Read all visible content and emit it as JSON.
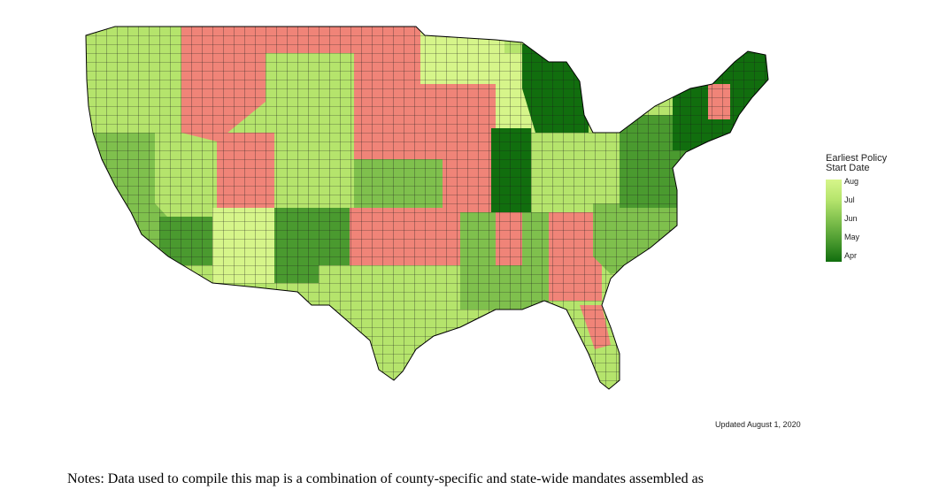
{
  "legend": {
    "title_line1": "Earliest Policy",
    "title_line2": "Start Date",
    "ticks": [
      "Aug",
      "Jul",
      "Jun",
      "May",
      "Apr"
    ],
    "colors": {
      "Aug": "#d6f58a",
      "Jul": "#b5e46c",
      "Jun": "#7fc04d",
      "May": "#4a9a2f",
      "Apr": "#116e0e",
      "none": "#f08478"
    }
  },
  "updated": "Updated August 1, 2020",
  "notes": "Notes: Data used to compile this map is a combination of county-specific and state-wide mandates assembled as"
}
